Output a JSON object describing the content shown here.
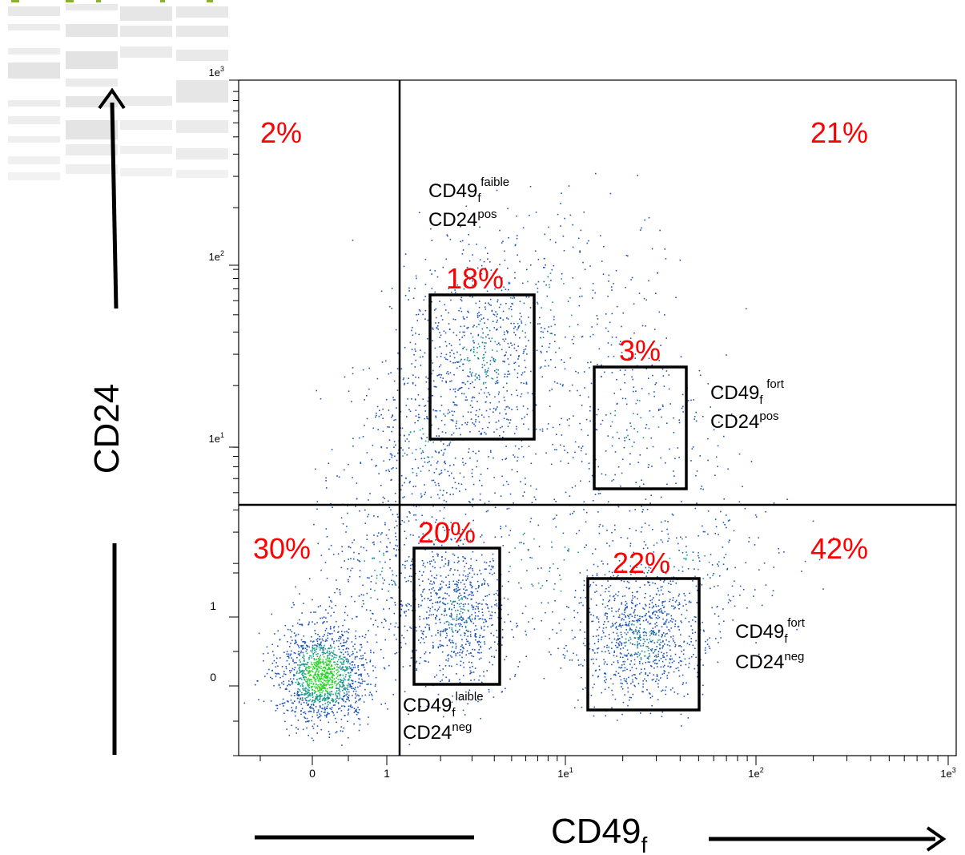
{
  "chart_data": {
    "type": "scatter",
    "subtype": "flow-cytometry-density-dot-plot",
    "x_axis": {
      "label_main": "CD49",
      "label_sub": "f",
      "scale": "biexponential (linear near 0, log above 1)",
      "ticks": [
        "0",
        "1",
        "1e1",
        "1e2",
        "1e3"
      ],
      "range": [
        "below 0",
        "1e3"
      ]
    },
    "y_axis": {
      "label": "CD24",
      "scale": "biexponential (linear near 0, log above 1)",
      "ticks": [
        "0",
        "1",
        "1e1",
        "1e2",
        "1e3"
      ],
      "range": [
        "below 0",
        "1e3"
      ]
    },
    "quadrant_gate": {
      "x": 1.1,
      "y": 4.5
    },
    "quadrant_percentages": {
      "upper_left": "2%",
      "upper_right": "21%",
      "lower_left": "30%",
      "lower_right": "42%"
    },
    "populations": [
      {
        "id": "cd49f-low-cd24-pos",
        "gate_pct": "18%",
        "x_range": [
          1.5,
          6
        ],
        "y_range": [
          12,
          80
        ],
        "label_main": "CD49",
        "label_sub": "f",
        "label_sup": "faible",
        "label_line2_main": "CD24",
        "label_line2_sup": "pos"
      },
      {
        "id": "cd49f-high-cd24-pos",
        "gate_pct": "3%",
        "x_range": [
          13,
          45
        ],
        "y_range": [
          6,
          25
        ],
        "label_main": "CD49",
        "label_sub": "f",
        "label_sup": "fort",
        "label_line2_main": "CD24",
        "label_line2_sup": "pos"
      },
      {
        "id": "cd49f-low-cd24-neg",
        "gate_pct": "20%",
        "x_range": [
          1.2,
          4
        ],
        "y_range": [
          0.05,
          3
        ],
        "label_main": "CD49",
        "label_sub": "f",
        "label_sup": "laible",
        "label_line2_main": "CD24",
        "label_line2_sup": "neg"
      },
      {
        "id": "cd49f-high-cd24-neg",
        "gate_pct": "22%",
        "x_range": [
          12,
          50
        ],
        "y_range": [
          -0.4,
          1.5
        ],
        "label_main": "CD49",
        "label_sub": "f",
        "label_sup": "fort",
        "label_line2_main": "CD24",
        "label_line2_sup": "neg"
      }
    ],
    "event_clusters": [
      {
        "x": 0.05,
        "y": 0.2,
        "density": "very high",
        "color": "#2bd42b"
      },
      {
        "x": 2.5,
        "y": 0.9,
        "density": "medium"
      },
      {
        "x": 22,
        "y": 0.6,
        "density": "medium"
      },
      {
        "x": 3.5,
        "y": 30,
        "density": "medium"
      },
      {
        "x": 25,
        "y": 12,
        "density": "low"
      }
    ],
    "colors": {
      "event_low_density": "#1c54b8",
      "event_mid_density": "#1a9a8a",
      "event_high_density": "#2bd42b",
      "annotation_pct": "#ff0000",
      "gate_lines": "#000000"
    }
  }
}
